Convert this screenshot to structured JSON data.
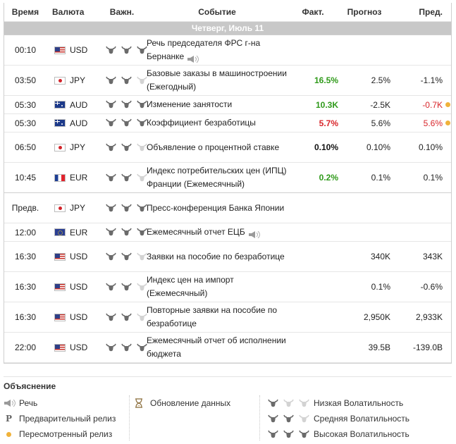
{
  "columns": {
    "time": "Время",
    "currency": "Валюта",
    "importance": "Важн.",
    "event": "Событие",
    "actual": "Факт.",
    "forecast": "Прогноз",
    "previous": "Пред."
  },
  "day_label": "Четверг, Июль 11",
  "colors": {
    "positive": "#2f9a1a",
    "negative": "#d8262b",
    "revised": "#f0b23a",
    "day_bar": "#c8c8c8"
  },
  "events": [
    {
      "time": "00:10",
      "currency": "USD",
      "flag": "us",
      "importance": 3,
      "event": "Речь председателя ФРС г-на Бернанке",
      "speech": true,
      "actual": "",
      "actual_color": "",
      "forecast": "",
      "previous": "",
      "previous_color": "",
      "revised": false,
      "tall": true
    },
    {
      "time": "03:50",
      "currency": "JPY",
      "flag": "jp",
      "importance": 2,
      "event": "Базовые заказы в машиностроении (Ежегодный)",
      "speech": false,
      "actual": "16.5%",
      "actual_color": "green",
      "forecast": "2.5%",
      "previous": "-1.1%",
      "previous_color": "",
      "revised": false,
      "tall": true
    },
    {
      "time": "05:30",
      "currency": "AUD",
      "flag": "au",
      "importance": 3,
      "event": "Изменение занятости",
      "speech": false,
      "actual": "10.3K",
      "actual_color": "green",
      "forecast": "-2.5K",
      "previous": "-0.7K",
      "previous_color": "red",
      "revised": true,
      "tall": false
    },
    {
      "time": "05:30",
      "currency": "AUD",
      "flag": "au",
      "importance": 3,
      "event": "Коэффициент безработицы",
      "speech": false,
      "actual": "5.7%",
      "actual_color": "red",
      "forecast": "5.6%",
      "previous": "5.6%",
      "previous_color": "red",
      "revised": true,
      "tall": false
    },
    {
      "time": "06:50",
      "currency": "JPY",
      "flag": "jp",
      "importance": 2,
      "event": "Объявление о процентной ставке",
      "speech": false,
      "actual": "0.10%",
      "actual_color": "black",
      "forecast": "0.10%",
      "previous": "0.10%",
      "previous_color": "",
      "revised": false,
      "tall": true
    },
    {
      "time": "10:45",
      "currency": "EUR",
      "flag": "fr",
      "importance": 2,
      "event": "Индекс потребительских цен (ИПЦ) Франции (Ежемесячный)",
      "speech": false,
      "actual": "0.2%",
      "actual_color": "green",
      "forecast": "0.1%",
      "previous": "0.1%",
      "previous_color": "",
      "revised": false,
      "tall": true,
      "thick": true
    },
    {
      "time": "Предв.",
      "currency": "JPY",
      "flag": "jp",
      "importance": 3,
      "event": "Пресс-конференция Банка Японии",
      "speech": false,
      "actual": "",
      "actual_color": "",
      "forecast": "",
      "previous": "",
      "previous_color": "",
      "revised": false,
      "tall": true
    },
    {
      "time": "12:00",
      "currency": "EUR",
      "flag": "eu",
      "importance": 3,
      "event": "Ежемесячный отчет ЕЦБ",
      "speech": true,
      "actual": "",
      "actual_color": "",
      "forecast": "",
      "previous": "",
      "previous_color": "",
      "revised": false,
      "tall": false
    },
    {
      "time": "16:30",
      "currency": "USD",
      "flag": "us",
      "importance": 2,
      "event": "Заявки на пособие по безработице",
      "speech": false,
      "actual": "",
      "actual_color": "",
      "forecast": "340K",
      "previous": "343K",
      "previous_color": "",
      "revised": false,
      "tall": true
    },
    {
      "time": "16:30",
      "currency": "USD",
      "flag": "us",
      "importance": 2,
      "event": "Индекс цен на импорт (Ежемесячный)",
      "speech": false,
      "actual": "",
      "actual_color": "",
      "forecast": "0.1%",
      "previous": "-0.6%",
      "previous_color": "",
      "revised": false,
      "tall": true
    },
    {
      "time": "16:30",
      "currency": "USD",
      "flag": "us",
      "importance": 2,
      "event": "Повторные заявки на пособие по безработице",
      "speech": false,
      "actual": "",
      "actual_color": "",
      "forecast": "2,950K",
      "previous": "2,933K",
      "previous_color": "",
      "revised": false,
      "tall": true
    },
    {
      "time": "22:00",
      "currency": "USD",
      "flag": "us",
      "importance": 3,
      "event": "Ежемесячный отчет об исполнении бюджета",
      "speech": false,
      "actual": "",
      "actual_color": "",
      "forecast": "39.5B",
      "previous": "-139.0B",
      "previous_color": "",
      "revised": false,
      "tall": true
    }
  ],
  "legend": {
    "title": "Объяснение",
    "speech": "Речь",
    "preliminary": "Предварительный релиз",
    "revised": "Пересмотренный релиз",
    "data_update": "Обновление данных",
    "low_vol": "Низкая Волатильность",
    "mid_vol": "Средняя Волатильность",
    "high_vol": "Высокая Волатильность",
    "preliminary_icon_letter": "P"
  }
}
